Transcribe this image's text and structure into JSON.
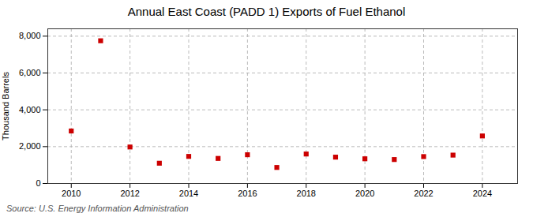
{
  "chart_data": {
    "type": "scatter",
    "title": "Annual East Coast (PADD 1) Exports of Fuel Ethanol",
    "ylabel": "Thousand Barrels",
    "annotations": [
      "Source: U.S. Energy Information Administration"
    ],
    "x": [
      2010,
      2011,
      2012,
      2013,
      2014,
      2015,
      2016,
      2017,
      2018,
      2019,
      2020,
      2021,
      2022,
      2023,
      2024
    ],
    "values": [
      2850,
      7750,
      1980,
      1100,
      1470,
      1360,
      1560,
      870,
      1600,
      1430,
      1340,
      1300,
      1460,
      1540,
      2580
    ],
    "color": "#cc0000",
    "marker": "square",
    "xlim": [
      2009.2,
      2025.2
    ],
    "xticks": [
      2010,
      2012,
      2014,
      2016,
      2018,
      2020,
      2022,
      2024
    ],
    "ylim": [
      0,
      8400
    ],
    "yticks": [
      0,
      {
        "value": 2000,
        "label": "2,000"
      },
      {
        "value": 4000,
        "label": "4,000"
      },
      {
        "value": 6000,
        "label": "6,000"
      },
      {
        "value": 8000,
        "label": "8,000"
      }
    ],
    "grid": true
  }
}
